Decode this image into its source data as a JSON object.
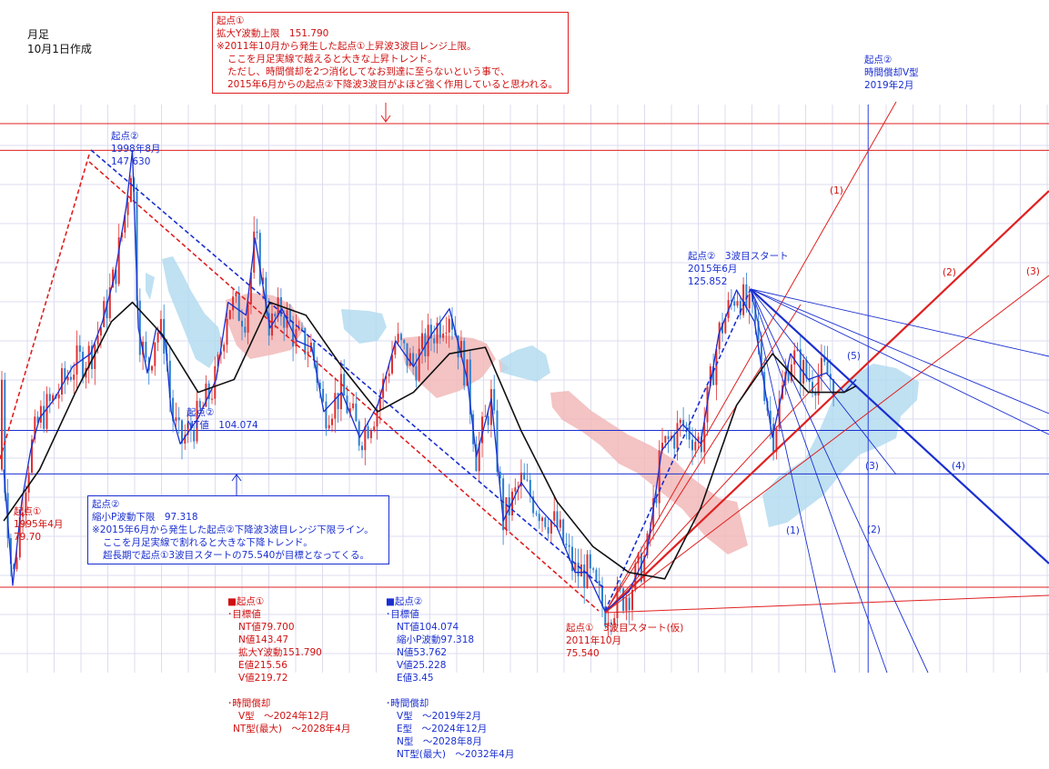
{
  "header": {
    "timeframe": "月足",
    "created": "10月1日作成"
  },
  "colors": {
    "red": "#d01010",
    "blue": "#1a2fd0",
    "grid": "#dcdcf0",
    "cloud_red": "#f2b8b8",
    "cloud_blue": "#b4dcf0"
  },
  "ann_top_red": {
    "title": "起点①",
    "l1": "拡大Y波動上限　151.790",
    "l2": "※2011年10月から発生した起点①上昇波3波目レンジ上限。",
    "l3": "ここを月足実線で越えると大きな上昇トレンド。",
    "l4": "ただし、時間償却を2つ消化してなお到達に至らないという事で、",
    "l5": "2015年6月からの起点②下降波3波目がよほど強く作用していると思われる。"
  },
  "ann_blue_box": {
    "title": "起点②",
    "l1": "縮小P波動下限　97.318",
    "l2": "※2015年6月から発生した起点②下降波3波目レンジ下限ライン。",
    "l3": "ここを月足実線で割れると大きな下降トレンド。",
    "l4": "超長期で起点①3波目スタートの75.540が目標となってくる。"
  },
  "labels": {
    "peak_1998": {
      "l1": "起点②",
      "l2": "1998年8月",
      "l3": "147.630"
    },
    "nt_value": {
      "l1": "起点②",
      "l2": "NT値　104.074"
    },
    "low_1995": {
      "l1": "起点①",
      "l2": "1995年4月",
      "l3": "79.70"
    },
    "start_2015": {
      "l1": "起点②　3波目スタート",
      "l2": "2015年6月",
      "l3": "125.852"
    },
    "time_2019": {
      "l1": "起点②",
      "l2": "時間償却V型",
      "l3": "2019年2月"
    },
    "low_2011": {
      "l1": "起点①　3波目スタート(仮)",
      "l2": "2011年10月",
      "l3": "75.540"
    },
    "fan_red": [
      "(1)",
      "(2)",
      "(3)"
    ],
    "fan_blue": [
      "(1)",
      "(2)",
      "(3)",
      "(4)",
      "(5)"
    ]
  },
  "target_red": {
    "title": "■起点①",
    "sub": "･目標値",
    "values": [
      "NT値79.700",
      "N値143.47",
      "拡大Y波動151.790",
      "E値215.56",
      "V値219.72"
    ],
    "time_title": "･時間償却",
    "times": [
      "V型　～2024年12月",
      "NT型(最大)　～2028年4月"
    ]
  },
  "target_blue": {
    "title": "■起点②",
    "sub": "･目標値",
    "values": [
      "NT値104.074",
      "縮小P波動97.318",
      "N値53.762",
      "V値25.228",
      "E値3.45"
    ],
    "time_title": "･時間償却",
    "times": [
      "V型　～2019年2月",
      "E型　～2024年12月",
      "N型　～2028年8月",
      "NT型(最大)　～2032年4月"
    ]
  },
  "chart_data": {
    "type": "candlestick",
    "title": "",
    "xlabel": "",
    "ylabel": "",
    "horizontal_lines": [
      {
        "value": 151.79,
        "color": "red",
        "label": "拡大Y波動上限"
      },
      {
        "value": 147.63,
        "color": "red",
        "label": "起点② 1998年8月"
      },
      {
        "value": 104.074,
        "color": "blue",
        "label": "NT値"
      },
      {
        "value": 97.318,
        "color": "blue",
        "label": "縮小P波動下限"
      },
      {
        "value": 79.7,
        "color": "red",
        "label": "NT値79.700"
      }
    ],
    "key_points": [
      {
        "date": "1995-04",
        "value": 79.7,
        "label": "起点①"
      },
      {
        "date": "1998-08",
        "value": 147.63,
        "label": "起点②"
      },
      {
        "date": "2011-10",
        "value": 75.54,
        "label": "起点① 3波目スタート(仮)"
      },
      {
        "date": "2015-06",
        "value": 125.852,
        "label": "起点② 3波目スタート"
      }
    ],
    "vertical_lines": [
      {
        "date": "2019-02",
        "label": "時間償却V型"
      }
    ],
    "series": [
      {
        "name": "",
        "kind": "close",
        "color": "#1a2fd0",
        "values": [
          [
            "1995-01",
            98
          ],
          [
            "1995-04",
            80
          ],
          [
            "1995-07",
            93
          ],
          [
            "1995-10",
            101
          ],
          [
            "1996-01",
            106
          ],
          [
            "1996-06",
            109
          ],
          [
            "1996-12",
            114
          ],
          [
            "1997-06",
            116
          ],
          [
            "1997-10",
            121
          ],
          [
            "1998-02",
            128
          ],
          [
            "1998-06",
            139
          ],
          [
            "1998-08",
            147.6
          ],
          [
            "1998-10",
            120
          ],
          [
            "1999-01",
            113
          ],
          [
            "1999-04",
            120
          ],
          [
            "1999-07",
            118
          ],
          [
            "1999-09",
            107
          ],
          [
            "1999-12",
            102
          ],
          [
            "2000-06",
            106
          ],
          [
            "2000-12",
            112
          ],
          [
            "2001-04",
            124
          ],
          [
            "2001-10",
            122
          ],
          [
            "2002-01",
            134
          ],
          [
            "2002-06",
            120
          ],
          [
            "2002-10",
            123
          ],
          [
            "2003-03",
            118
          ],
          [
            "2003-08",
            117
          ],
          [
            "2003-12",
            107
          ],
          [
            "2004-06",
            110
          ],
          [
            "2004-12",
            103
          ],
          [
            "2005-06",
            108
          ],
          [
            "2005-12",
            118
          ],
          [
            "2006-06",
            114
          ],
          [
            "2006-12",
            119
          ],
          [
            "2007-06",
            123
          ],
          [
            "2007-12",
            112
          ],
          [
            "2008-03",
            100
          ],
          [
            "2008-08",
            109
          ],
          [
            "2008-12",
            90
          ],
          [
            "2009-06",
            96
          ],
          [
            "2009-12",
            92
          ],
          [
            "2010-06",
            89
          ],
          [
            "2010-12",
            82
          ],
          [
            "2011-04",
            82
          ],
          [
            "2011-10",
            76
          ],
          [
            "2012-06",
            79
          ],
          [
            "2012-12",
            85
          ],
          [
            "2013-05",
            101
          ],
          [
            "2013-12",
            105
          ],
          [
            "2014-06",
            102
          ],
          [
            "2014-12",
            119
          ],
          [
            "2015-06",
            125.9
          ],
          [
            "2015-12",
            121
          ],
          [
            "2016-06",
            103
          ],
          [
            "2016-12",
            116
          ],
          [
            "2017-06",
            112
          ],
          [
            "2017-12",
            113
          ],
          [
            "2018-06",
            110
          ],
          [
            "2018-10",
            112
          ]
        ]
      },
      {
        "name": "",
        "kind": "moving-average",
        "color": "#111111",
        "values": [
          [
            "1995-01",
            90
          ],
          [
            "1996-01",
            98
          ],
          [
            "1997-01",
            110
          ],
          [
            "1998-01",
            121
          ],
          [
            "1998-08",
            124
          ],
          [
            "1999-06",
            119
          ],
          [
            "2000-06",
            110
          ],
          [
            "2001-06",
            112
          ],
          [
            "2002-06",
            124
          ],
          [
            "2003-06",
            122
          ],
          [
            "2004-06",
            114
          ],
          [
            "2005-06",
            107
          ],
          [
            "2006-06",
            110
          ],
          [
            "2007-06",
            116
          ],
          [
            "2008-06",
            117
          ],
          [
            "2009-06",
            104
          ],
          [
            "2010-06",
            93
          ],
          [
            "2011-06",
            86
          ],
          [
            "2012-06",
            82
          ],
          [
            "2013-06",
            81
          ],
          [
            "2014-06",
            92
          ],
          [
            "2015-06",
            108
          ],
          [
            "2016-06",
            116
          ],
          [
            "2017-06",
            110
          ],
          [
            "2018-06",
            110
          ],
          [
            "2018-10",
            111
          ]
        ]
      }
    ]
  }
}
